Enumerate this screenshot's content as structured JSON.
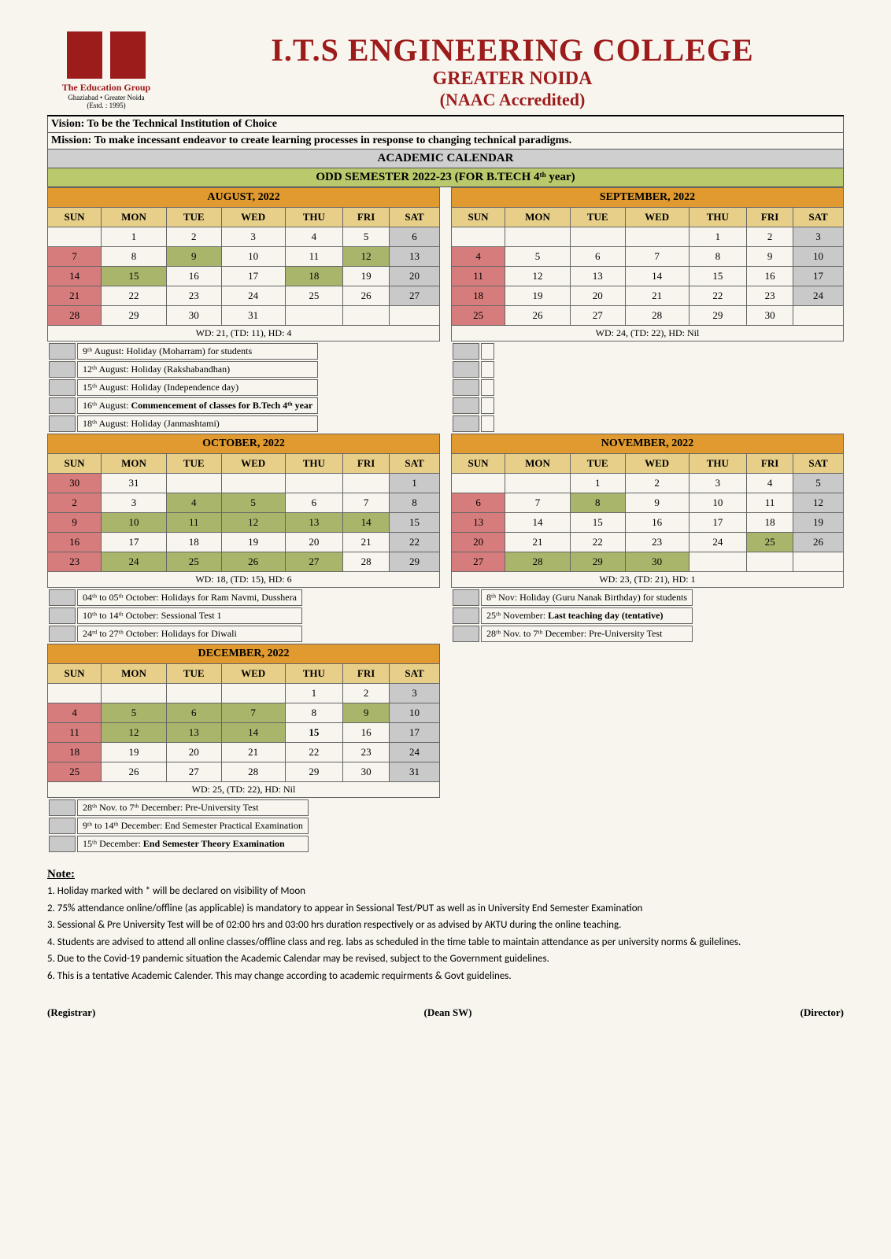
{
  "header": {
    "logo_tag1": "The Education Group",
    "logo_tag2": "Ghaziabad • Greater Noida",
    "logo_tag3": "(Estd. : 1995)",
    "title": "I.T.S ENGINEERING COLLEGE",
    "subtitle": "GREATER NOIDA",
    "accred": "(NAAC Accredited)"
  },
  "vision": "Vision:  To be the Technical Institution of Choice",
  "mission": "Mission: To make incessant endeavor to create learning processes in response to changing technical paradigms.",
  "band_main": "ACADEMIC CALENDAR",
  "band_sem": "ODD SEMESTER 2022-23 (FOR B.TECH 4ᵗʰ year)",
  "days": [
    "SUN",
    "MON",
    "TUE",
    "WED",
    "THU",
    "FRI",
    "SAT"
  ],
  "months": {
    "aug": {
      "title": "AUGUST, 2022",
      "wd": "WD: 21, (TD: 11), HD: 4",
      "grid": [
        [
          "",
          "1",
          "2",
          "3",
          "4",
          "5",
          "6"
        ],
        [
          "7",
          "8",
          "9",
          "10",
          "11",
          "12",
          "13"
        ],
        [
          "14",
          "15",
          "16",
          "17",
          "18",
          "19",
          "20"
        ],
        [
          "21",
          "22",
          "23",
          "24",
          "25",
          "26",
          "27"
        ],
        [
          "28",
          "29",
          "30",
          "31",
          "",
          "",
          ""
        ]
      ],
      "hol": [
        "9",
        "12",
        "15",
        "18"
      ],
      "events": [
        "9ᵗʰ August: Holiday (Moharram) for students",
        "12ᵗʰ August: Holiday (Rakshabandhan)",
        "15ᵗʰ August: Holiday (Independence day)",
        "16ᵗʰ August: <b>Commencement of classes for B.Tech 4ᵗʰ year</b>",
        "18ᵗʰ August: Holiday (Janmashtami)"
      ]
    },
    "sep": {
      "title": "SEPTEMBER, 2022",
      "wd": "WD: 24, (TD: 22), HD: Nil",
      "grid": [
        [
          "",
          "",
          "",
          "",
          "1",
          "2",
          "3"
        ],
        [
          "4",
          "5",
          "6",
          "7",
          "8",
          "9",
          "10"
        ],
        [
          "11",
          "12",
          "13",
          "14",
          "15",
          "16",
          "17"
        ],
        [
          "18",
          "19",
          "20",
          "21",
          "22",
          "23",
          "24"
        ],
        [
          "25",
          "26",
          "27",
          "28",
          "29",
          "30",
          ""
        ]
      ],
      "hol": [],
      "events": [
        "",
        "",
        "",
        "",
        ""
      ]
    },
    "oct": {
      "title": "OCTOBER, 2022",
      "wd": "WD: 18, (TD: 15), HD: 6",
      "grid": [
        [
          "30",
          "31",
          "",
          "",
          "",
          "",
          "1"
        ],
        [
          "2",
          "3",
          "4",
          "5",
          "6",
          "7",
          "8"
        ],
        [
          "9",
          "10",
          "11",
          "12",
          "13",
          "14",
          "15"
        ],
        [
          "16",
          "17",
          "18",
          "19",
          "20",
          "21",
          "22"
        ],
        [
          "23",
          "24",
          "25",
          "26",
          "27",
          "28",
          "29"
        ]
      ],
      "hol": [
        "4",
        "5",
        "10",
        "11",
        "12",
        "13",
        "14",
        "24",
        "25",
        "26",
        "27"
      ],
      "events": [
        "04ᵗʰ to 05ᵗʰ October: Holidays for Ram Navmi, Dusshera",
        "10ᵗʰ to 14ᵗʰ October: Sessional Test 1",
        "24ʳᵈ to 27ᵗʰ October: Holidays for Diwali"
      ]
    },
    "nov": {
      "title": "NOVEMBER, 2022",
      "wd": "WD: 23, (TD: 21), HD: 1",
      "grid": [
        [
          "",
          "",
          "1",
          "2",
          "3",
          "4",
          "5"
        ],
        [
          "6",
          "7",
          "8",
          "9",
          "10",
          "11",
          "12"
        ],
        [
          "13",
          "14",
          "15",
          "16",
          "17",
          "18",
          "19"
        ],
        [
          "20",
          "21",
          "22",
          "23",
          "24",
          "25",
          "26"
        ],
        [
          "27",
          "28",
          "29",
          "30",
          "",
          "",
          ""
        ]
      ],
      "hol": [
        "8",
        "25",
        "28",
        "29",
        "30"
      ],
      "events": [
        "8ᵗʰ Nov: Holiday (Guru Nanak Birthday) for students",
        "25ᵗʰ November: <b>Last teaching day (tentative)</b>",
        "28ᵗʰ Nov. to 7ᵗʰ December: Pre-University Test"
      ]
    },
    "dec": {
      "title": "DECEMBER, 2022",
      "wd": "WD: 25, (TD: 22), HD: Nil",
      "grid": [
        [
          "",
          "",
          "",
          "",
          "1",
          "2",
          "3"
        ],
        [
          "4",
          "5",
          "6",
          "7",
          "8",
          "9",
          "10"
        ],
        [
          "11",
          "12",
          "13",
          "14",
          "15",
          "16",
          "17"
        ],
        [
          "18",
          "19",
          "20",
          "21",
          "22",
          "23",
          "24"
        ],
        [
          "25",
          "26",
          "27",
          "28",
          "29",
          "30",
          "31"
        ]
      ],
      "hol": [
        "5",
        "6",
        "7",
        "9",
        "12",
        "13",
        "14"
      ],
      "bold": [
        "15"
      ],
      "events": [
        "28ᵗʰ Nov. to 7ᵗʰ December: Pre-University Test",
        "9ᵗʰ to 14ᵗʰ December: End Semester Practical Examination",
        "15ᵗʰ December: <b>End Semester Theory Examination</b>"
      ]
    }
  },
  "notes_h": "Note:",
  "notes": [
    "1. Holiday marked with * will be declared on visibility of Moon",
    "2. 75% attendance online/offline (as applicable) is mandatory to appear in Sessional Test/PUT as well as in University End Semester Examination",
    "3. Sessional & Pre University Test will be of 02:00 hrs and 03:00 hrs duration respectively or as advised by AKTU during the online teaching.",
    "4. Students are advised to attend all online classes/offline class and reg. labs as scheduled in the time table to maintain attendance as per university norms & guilelines.",
    "5. Due to the Covid-19 pandemic situation the Academic Calendar may be revised, subject to the Government guidelines.",
    "6. This is a tentative Academic Calender. This may change according to academic requirments & Govt guidelines."
  ],
  "sigs": {
    "left": "(Registrar)",
    "mid": "(Dean SW)",
    "right": "(Director)"
  },
  "colors": {
    "brand": "#9c1b1b",
    "orange": "#e09a2f",
    "green": "#b9c96b",
    "sun": "#d67c7c",
    "sat": "#c9c9c9",
    "hol": "#a9b56b",
    "daybg": "#e8cf89"
  }
}
